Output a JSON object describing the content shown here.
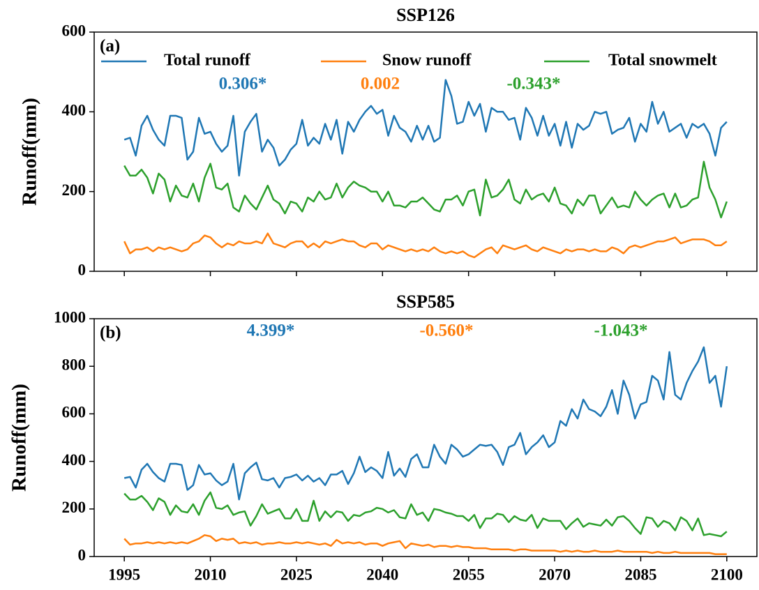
{
  "chart_data": [
    {
      "type": "line",
      "title": "SSP126",
      "panel_label": "(a)",
      "y_label": "Runoff(mm)",
      "xlim": [
        1989.75,
        2105.25
      ],
      "xticks": [
        1995,
        2010,
        2025,
        2040,
        2055,
        2070,
        2085,
        2100
      ],
      "show_xtick_labels": false,
      "ylim": [
        0,
        600
      ],
      "yticks": [
        0,
        200,
        400,
        600
      ],
      "legend": "top",
      "x": [
        1995,
        1996,
        1997,
        1998,
        1999,
        2000,
        2001,
        2002,
        2003,
        2004,
        2005,
        2006,
        2007,
        2008,
        2009,
        2010,
        2011,
        2012,
        2013,
        2014,
        2015,
        2016,
        2017,
        2018,
        2019,
        2020,
        2021,
        2022,
        2023,
        2024,
        2025,
        2026,
        2027,
        2028,
        2029,
        2030,
        2031,
        2032,
        2033,
        2034,
        2035,
        2036,
        2037,
        2038,
        2039,
        2040,
        2041,
        2042,
        2043,
        2044,
        2045,
        2046,
        2047,
        2048,
        2049,
        2050,
        2051,
        2052,
        2053,
        2054,
        2055,
        2056,
        2057,
        2058,
        2059,
        2060,
        2061,
        2062,
        2063,
        2064,
        2065,
        2066,
        2067,
        2068,
        2069,
        2070,
        2071,
        2072,
        2073,
        2074,
        2075,
        2076,
        2077,
        2078,
        2079,
        2080,
        2081,
        2082,
        2083,
        2084,
        2085,
        2086,
        2087,
        2088,
        2089,
        2090,
        2091,
        2092,
        2093,
        2094,
        2095,
        2096,
        2097,
        2098,
        2099,
        2100
      ],
      "series": [
        {
          "name": "Total runoff",
          "color": "#1f77b4",
          "trend_label": "0.306*",
          "values": [
            330,
            335,
            290,
            365,
            390,
            355,
            330,
            315,
            390,
            390,
            385,
            280,
            300,
            385,
            345,
            350,
            320,
            300,
            315,
            390,
            240,
            350,
            375,
            395,
            300,
            330,
            310,
            265,
            280,
            305,
            320,
            380,
            315,
            335,
            320,
            370,
            330,
            380,
            295,
            375,
            350,
            380,
            400,
            415,
            395,
            405,
            340,
            390,
            360,
            350,
            325,
            365,
            330,
            365,
            325,
            335,
            480,
            440,
            370,
            375,
            425,
            390,
            420,
            350,
            410,
            400,
            400,
            380,
            385,
            330,
            410,
            385,
            340,
            390,
            340,
            370,
            315,
            375,
            310,
            370,
            355,
            365,
            400,
            395,
            400,
            345,
            355,
            360,
            385,
            325,
            370,
            350,
            425,
            370,
            400,
            350,
            360,
            370,
            335,
            370,
            360,
            370,
            345,
            290,
            360,
            375
          ]
        },
        {
          "name": "Snow runoff",
          "color": "#ff7f0e",
          "trend_label": "0.002",
          "values": [
            75,
            45,
            55,
            55,
            60,
            50,
            60,
            55,
            60,
            55,
            50,
            55,
            70,
            75,
            90,
            85,
            70,
            60,
            70,
            65,
            75,
            70,
            70,
            75,
            70,
            95,
            70,
            65,
            60,
            70,
            75,
            75,
            60,
            70,
            60,
            75,
            70,
            75,
            80,
            75,
            75,
            65,
            60,
            70,
            70,
            55,
            65,
            60,
            55,
            50,
            55,
            50,
            55,
            50,
            60,
            50,
            45,
            50,
            45,
            50,
            40,
            35,
            45,
            55,
            60,
            45,
            65,
            60,
            55,
            60,
            65,
            55,
            50,
            60,
            55,
            50,
            45,
            55,
            50,
            55,
            55,
            50,
            55,
            50,
            50,
            60,
            55,
            45,
            60,
            65,
            60,
            65,
            70,
            75,
            75,
            80,
            85,
            70,
            75,
            80,
            80,
            80,
            75,
            65,
            65,
            75
          ]
        },
        {
          "name": "Total snowmelt",
          "color": "#2ca02c",
          "trend_label": "-0.343*",
          "values": [
            265,
            240,
            240,
            255,
            235,
            195,
            245,
            230,
            175,
            215,
            190,
            185,
            220,
            175,
            235,
            270,
            210,
            205,
            220,
            160,
            150,
            190,
            170,
            155,
            185,
            215,
            180,
            170,
            145,
            175,
            170,
            150,
            185,
            175,
            200,
            180,
            185,
            220,
            185,
            210,
            225,
            215,
            210,
            200,
            200,
            175,
            200,
            165,
            165,
            160,
            175,
            175,
            185,
            170,
            155,
            150,
            180,
            180,
            190,
            165,
            200,
            205,
            140,
            230,
            185,
            190,
            205,
            230,
            180,
            170,
            205,
            180,
            190,
            195,
            175,
            210,
            170,
            165,
            145,
            180,
            165,
            190,
            190,
            145,
            165,
            185,
            160,
            165,
            160,
            200,
            180,
            165,
            180,
            190,
            195,
            160,
            195,
            160,
            165,
            180,
            185,
            275,
            210,
            180,
            135,
            175
          ]
        }
      ]
    },
    {
      "type": "line",
      "title": "SSP585",
      "panel_label": "(b)",
      "y_label": "Runoff(mm)",
      "xlim": [
        1989.75,
        2105.25
      ],
      "xticks": [
        1995,
        2010,
        2025,
        2040,
        2055,
        2070,
        2085,
        2100
      ],
      "show_xtick_labels": true,
      "ylim": [
        0,
        1000
      ],
      "yticks": [
        0,
        200,
        400,
        600,
        800,
        1000
      ],
      "legend": false,
      "x": [
        1995,
        1996,
        1997,
        1998,
        1999,
        2000,
        2001,
        2002,
        2003,
        2004,
        2005,
        2006,
        2007,
        2008,
        2009,
        2010,
        2011,
        2012,
        2013,
        2014,
        2015,
        2016,
        2017,
        2018,
        2019,
        2020,
        2021,
        2022,
        2023,
        2024,
        2025,
        2026,
        2027,
        2028,
        2029,
        2030,
        2031,
        2032,
        2033,
        2034,
        2035,
        2036,
        2037,
        2038,
        2039,
        2040,
        2041,
        2042,
        2043,
        2044,
        2045,
        2046,
        2047,
        2048,
        2049,
        2050,
        2051,
        2052,
        2053,
        2054,
        2055,
        2056,
        2057,
        2058,
        2059,
        2060,
        2061,
        2062,
        2063,
        2064,
        2065,
        2066,
        2067,
        2068,
        2069,
        2070,
        2071,
        2072,
        2073,
        2074,
        2075,
        2076,
        2077,
        2078,
        2079,
        2080,
        2081,
        2082,
        2083,
        2084,
        2085,
        2086,
        2087,
        2088,
        2089,
        2090,
        2091,
        2092,
        2093,
        2094,
        2095,
        2096,
        2097,
        2098,
        2099,
        2100
      ],
      "series": [
        {
          "color": "#1f77b4",
          "trend_label": "4.399*",
          "values": [
            330,
            335,
            290,
            365,
            390,
            355,
            330,
            315,
            390,
            390,
            385,
            280,
            300,
            385,
            345,
            350,
            320,
            300,
            315,
            390,
            240,
            350,
            375,
            395,
            325,
            320,
            330,
            290,
            330,
            335,
            345,
            320,
            340,
            315,
            330,
            300,
            345,
            345,
            360,
            305,
            350,
            420,
            355,
            375,
            360,
            330,
            440,
            340,
            370,
            335,
            410,
            430,
            375,
            375,
            470,
            420,
            390,
            470,
            450,
            420,
            430,
            450,
            470,
            465,
            470,
            440,
            385,
            460,
            470,
            520,
            430,
            460,
            480,
            510,
            460,
            480,
            570,
            550,
            620,
            580,
            660,
            620,
            610,
            590,
            630,
            700,
            600,
            740,
            680,
            580,
            640,
            650,
            760,
            740,
            660,
            860,
            680,
            660,
            730,
            780,
            820,
            880,
            730,
            760,
            630,
            800
          ]
        },
        {
          "color": "#ff7f0e",
          "trend_label": "-0.560*",
          "values": [
            75,
            50,
            55,
            55,
            60,
            55,
            60,
            55,
            60,
            55,
            60,
            55,
            65,
            75,
            90,
            85,
            65,
            75,
            70,
            75,
            55,
            60,
            55,
            60,
            50,
            55,
            55,
            60,
            55,
            55,
            60,
            55,
            60,
            55,
            50,
            55,
            45,
            70,
            55,
            60,
            55,
            60,
            50,
            55,
            55,
            45,
            55,
            60,
            65,
            35,
            55,
            50,
            45,
            50,
            40,
            45,
            45,
            40,
            45,
            40,
            40,
            35,
            35,
            35,
            30,
            30,
            30,
            30,
            25,
            30,
            30,
            25,
            25,
            25,
            25,
            25,
            20,
            25,
            20,
            25,
            20,
            20,
            25,
            20,
            20,
            20,
            25,
            20,
            20,
            20,
            20,
            20,
            15,
            20,
            15,
            15,
            20,
            15,
            15,
            15,
            15,
            15,
            15,
            10,
            10,
            10
          ]
        },
        {
          "color": "#2ca02c",
          "trend_label": "-1.043*",
          "values": [
            265,
            240,
            240,
            255,
            230,
            195,
            245,
            230,
            175,
            215,
            190,
            185,
            220,
            175,
            235,
            270,
            205,
            200,
            215,
            175,
            185,
            190,
            130,
            170,
            220,
            180,
            190,
            200,
            160,
            160,
            200,
            150,
            150,
            235,
            150,
            190,
            165,
            190,
            185,
            150,
            175,
            170,
            185,
            190,
            205,
            200,
            185,
            195,
            165,
            160,
            220,
            175,
            185,
            150,
            200,
            195,
            185,
            180,
            170,
            170,
            150,
            175,
            120,
            160,
            160,
            180,
            175,
            145,
            170,
            155,
            150,
            175,
            120,
            160,
            150,
            150,
            150,
            115,
            140,
            160,
            125,
            140,
            135,
            130,
            155,
            130,
            165,
            170,
            150,
            120,
            95,
            165,
            160,
            125,
            150,
            140,
            110,
            165,
            150,
            110,
            160,
            90,
            95,
            90,
            85,
            105
          ]
        }
      ]
    }
  ]
}
